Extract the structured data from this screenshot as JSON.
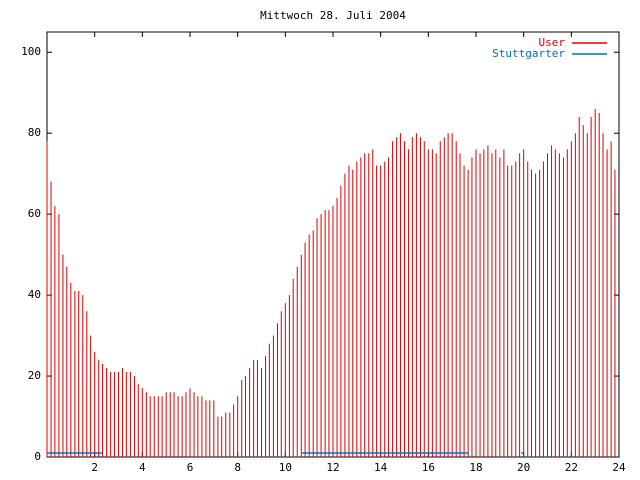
{
  "chart_data": {
    "type": "impulse",
    "title": "Mittwoch 28. Juli 2004",
    "xlim": [
      0,
      24
    ],
    "ylim": [
      0,
      105
    ],
    "xticks": [
      2,
      4,
      6,
      8,
      10,
      12,
      14,
      16,
      18,
      20,
      22,
      24
    ],
    "yticks": [
      0,
      20,
      40,
      60,
      80,
      100
    ],
    "legend": "top-right",
    "series": [
      {
        "name": "User",
        "color": "#e00000",
        "style": "impulses",
        "x": [
          0,
          0.17,
          0.33,
          0.5,
          0.67,
          0.83,
          1,
          1.17,
          1.33,
          1.5,
          1.67,
          1.83,
          2,
          2.17,
          2.33,
          2.5,
          2.67,
          2.83,
          3,
          3.17,
          3.33,
          3.5,
          3.67,
          3.83,
          4,
          4.17,
          4.33,
          4.5,
          4.67,
          4.83,
          5,
          5.17,
          5.33,
          5.5,
          5.67,
          5.83,
          6,
          6.17,
          6.33,
          6.5,
          6.67,
          6.83,
          7,
          7.17,
          7.33,
          7.5,
          7.67,
          7.83,
          8,
          8.17,
          8.33,
          8.5,
          8.67,
          8.83,
          9,
          9.17,
          9.33,
          9.5,
          9.67,
          9.83,
          10,
          10.17,
          10.33,
          10.5,
          10.67,
          10.83,
          11,
          11.17,
          11.33,
          11.5,
          11.67,
          11.83,
          12,
          12.17,
          12.33,
          12.5,
          12.67,
          12.83,
          13,
          13.17,
          13.33,
          13.5,
          13.67,
          13.83,
          14,
          14.17,
          14.33,
          14.5,
          14.67,
          14.83,
          15,
          15.17,
          15.33,
          15.5,
          15.67,
          15.83,
          16,
          16.17,
          16.33,
          16.5,
          16.67,
          16.83,
          17,
          17.17,
          17.33,
          17.5,
          17.67,
          17.83,
          18,
          18.17,
          18.33,
          18.5,
          18.67,
          18.83,
          19,
          19.17,
          19.33,
          19.5,
          19.67,
          19.83,
          20,
          20.17,
          20.33,
          20.5,
          20.67,
          20.83,
          21,
          21.17,
          21.33,
          21.5,
          21.67,
          21.83,
          22,
          22.17,
          22.33,
          22.5,
          22.67,
          22.83,
          23,
          23.17,
          23.33,
          23.5,
          23.67,
          23.83
        ],
        "values": [
          78,
          68,
          62,
          60,
          50,
          47,
          43,
          41,
          41,
          40,
          36,
          30,
          26,
          24,
          23,
          22,
          21,
          21,
          21,
          22,
          21,
          21,
          20,
          18,
          17,
          16,
          15,
          15,
          15,
          15,
          16,
          16,
          16,
          15,
          15,
          16,
          17,
          16,
          15,
          15,
          14,
          14,
          14,
          10,
          10,
          11,
          11,
          13,
          15,
          19,
          20,
          22,
          24,
          24,
          22,
          25,
          28,
          30,
          33,
          36,
          38,
          40,
          44,
          47,
          50,
          53,
          55,
          56,
          59,
          60,
          61,
          61,
          62,
          64,
          67,
          70,
          72,
          71,
          73,
          74,
          75,
          75,
          76,
          72,
          72,
          73,
          74,
          78,
          79,
          80,
          78,
          76,
          79,
          80,
          79,
          78,
          76,
          76,
          75,
          78,
          79,
          80,
          80,
          78,
          75,
          72,
          71,
          74,
          76,
          75,
          76,
          77,
          75,
          76,
          74,
          76,
          72,
          72,
          73,
          75,
          76,
          73,
          71,
          70,
          71,
          73,
          75,
          77,
          76,
          75,
          74,
          76,
          78,
          80,
          84,
          82,
          80,
          84,
          86,
          85,
          80,
          76,
          78,
          71
        ]
      },
      {
        "name": "Stuttgarter",
        "color": "#0070c0",
        "style": "lines",
        "x": [
          0,
          2.3,
          2.31,
          10.7,
          17.7,
          17.71,
          19.9,
          20
        ],
        "values": [
          1,
          1,
          null,
          1,
          1,
          null,
          1,
          1
        ]
      }
    ]
  }
}
